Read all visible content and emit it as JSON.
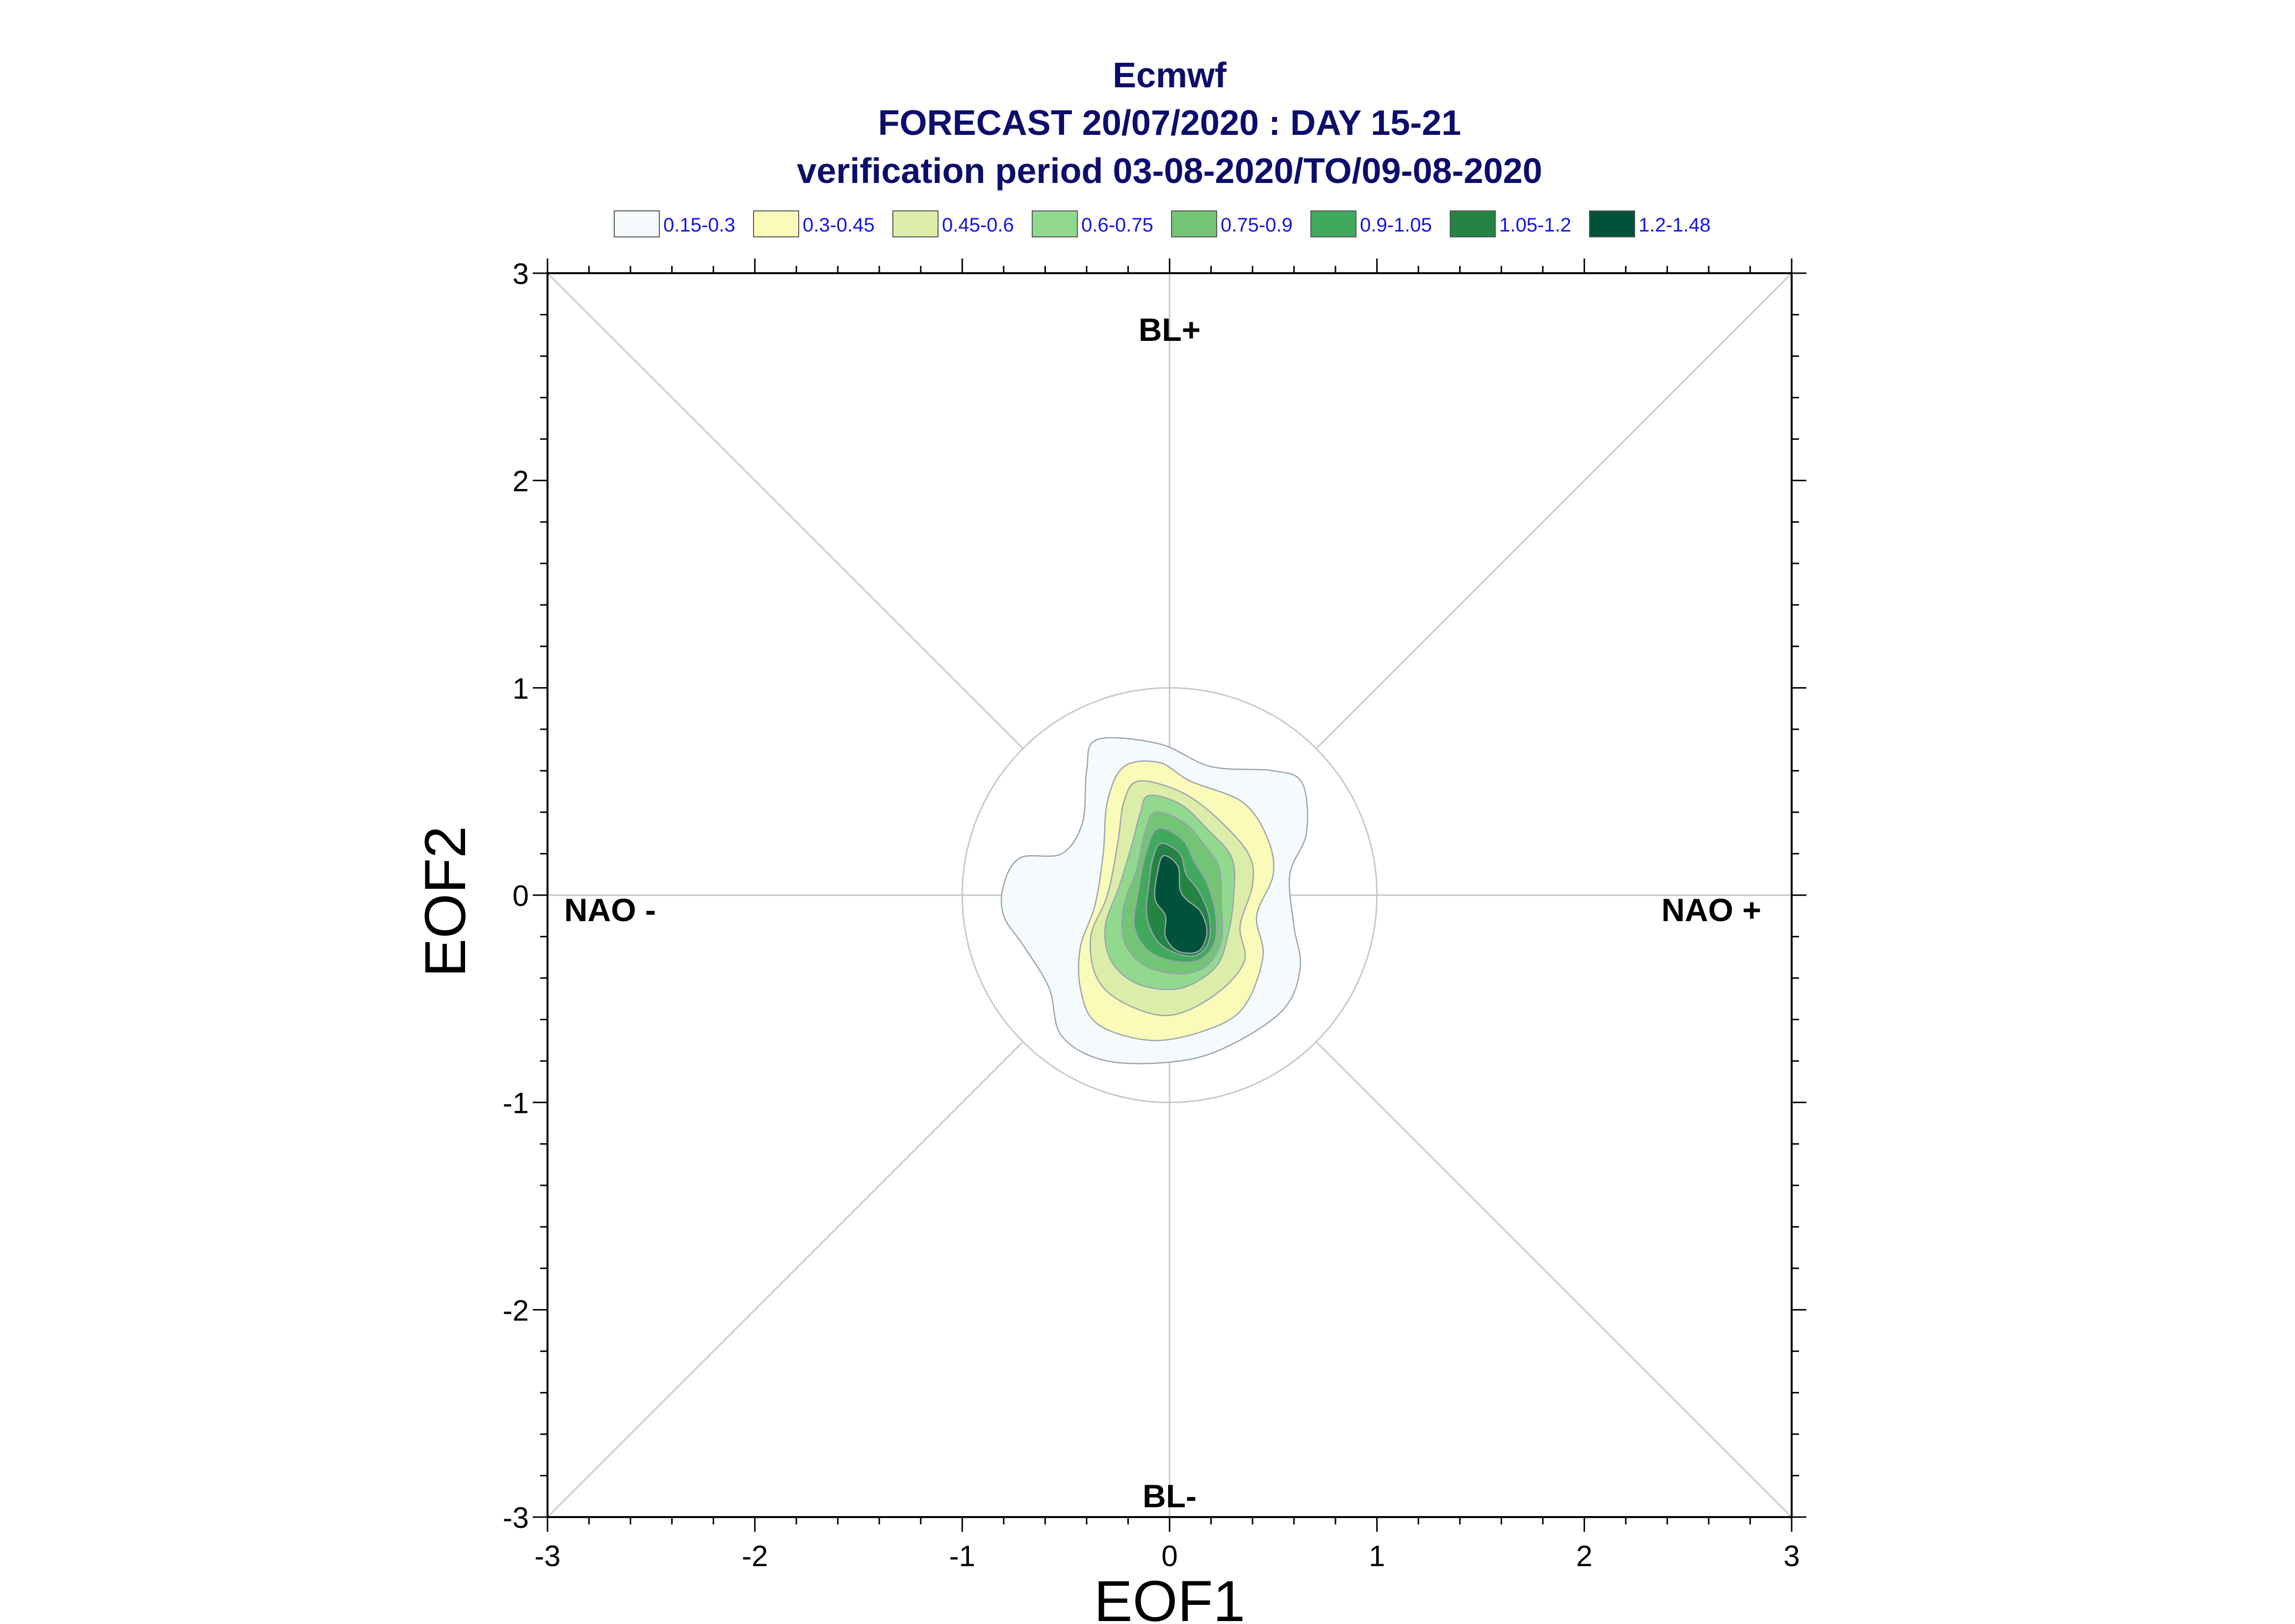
{
  "chart_data": {
    "type": "contour",
    "title": "Ecmwf",
    "subtitle_lines": [
      "FORECAST 20/07/2020 : DAY 15-21",
      "verification period 03-08-2020/TO/09-08-2020"
    ],
    "xlabel": "EOF1",
    "ylabel": "EOF2",
    "xlim": [
      -3,
      3
    ],
    "ylim": [
      -3,
      3
    ],
    "x_ticks": [
      "-3",
      "-2",
      "-1",
      "0",
      "1",
      "2",
      "3"
    ],
    "y_ticks": [
      "-3",
      "-2",
      "-1",
      "0",
      "1",
      "2",
      "3"
    ],
    "x_tick_values": [
      -3,
      -2,
      -1,
      0,
      1,
      2,
      3
    ],
    "y_tick_values": [
      -3,
      -2,
      -1,
      0,
      1,
      2,
      3
    ],
    "reference_circle_radius": 1,
    "regime_labels": {
      "top": "BL+",
      "bottom": "BL-",
      "left": "NAO -",
      "right": "NAO +"
    },
    "legend_position": "top",
    "levels": [
      {
        "label": "0.15-0.3",
        "color": "#f5fafd"
      },
      {
        "label": "0.3-0.45",
        "color": "#fafab9"
      },
      {
        "label": "0.45-0.6",
        "color": "#dcedaa"
      },
      {
        "label": "0.6-0.75",
        "color": "#92d990"
      },
      {
        "label": "0.75-0.9",
        "color": "#74c476"
      },
      {
        "label": "0.9-1.05",
        "color": "#41a95e"
      },
      {
        "label": "1.05-1.2",
        "color": "#238443"
      },
      {
        "label": "1.2-1.48",
        "color": "#00533a"
      }
    ],
    "contours": [
      [
        [
          -0.35,
          0.75
        ],
        [
          -0.05,
          0.73
        ],
        [
          0.2,
          0.62
        ],
        [
          0.5,
          0.6
        ],
        [
          0.64,
          0.54
        ],
        [
          0.66,
          0.3
        ],
        [
          0.58,
          0.1
        ],
        [
          0.6,
          -0.15
        ],
        [
          0.63,
          -0.35
        ],
        [
          0.55,
          -0.55
        ],
        [
          0.3,
          -0.72
        ],
        [
          0.05,
          -0.8
        ],
        [
          -0.3,
          -0.8
        ],
        [
          -0.52,
          -0.68
        ],
        [
          -0.58,
          -0.45
        ],
        [
          -0.7,
          -0.25
        ],
        [
          -0.8,
          -0.1
        ],
        [
          -0.8,
          0.05
        ],
        [
          -0.72,
          0.18
        ],
        [
          -0.52,
          0.2
        ],
        [
          -0.42,
          0.35
        ],
        [
          -0.4,
          0.6
        ]
      ],
      [
        [
          -0.22,
          0.62
        ],
        [
          -0.05,
          0.64
        ],
        [
          0.1,
          0.55
        ],
        [
          0.35,
          0.45
        ],
        [
          0.47,
          0.28
        ],
        [
          0.5,
          0.1
        ],
        [
          0.42,
          -0.1
        ],
        [
          0.45,
          -0.3
        ],
        [
          0.35,
          -0.55
        ],
        [
          0.15,
          -0.66
        ],
        [
          -0.1,
          -0.7
        ],
        [
          -0.35,
          -0.62
        ],
        [
          -0.43,
          -0.45
        ],
        [
          -0.43,
          -0.25
        ],
        [
          -0.36,
          -0.05
        ],
        [
          -0.32,
          0.2
        ],
        [
          -0.3,
          0.45
        ]
      ],
      [
        [
          -0.15,
          0.55
        ],
        [
          0.05,
          0.5
        ],
        [
          0.22,
          0.38
        ],
        [
          0.38,
          0.2
        ],
        [
          0.4,
          0.05
        ],
        [
          0.34,
          -0.15
        ],
        [
          0.36,
          -0.32
        ],
        [
          0.22,
          -0.48
        ],
        [
          0.0,
          -0.58
        ],
        [
          -0.22,
          -0.52
        ],
        [
          -0.35,
          -0.4
        ],
        [
          -0.38,
          -0.2
        ],
        [
          -0.3,
          0.0
        ],
        [
          -0.25,
          0.25
        ],
        [
          -0.22,
          0.45
        ]
      ],
      [
        [
          -0.1,
          0.48
        ],
        [
          0.05,
          0.44
        ],
        [
          0.18,
          0.32
        ],
        [
          0.3,
          0.18
        ],
        [
          0.31,
          0.0
        ],
        [
          0.28,
          -0.2
        ],
        [
          0.22,
          -0.35
        ],
        [
          0.05,
          -0.45
        ],
        [
          -0.15,
          -0.43
        ],
        [
          -0.28,
          -0.32
        ],
        [
          -0.31,
          -0.15
        ],
        [
          -0.24,
          0.05
        ],
        [
          -0.18,
          0.25
        ],
        [
          -0.14,
          0.4
        ]
      ],
      [
        [
          -0.07,
          0.4
        ],
        [
          0.07,
          0.35
        ],
        [
          0.17,
          0.24
        ],
        [
          0.24,
          0.13
        ],
        [
          0.25,
          -0.05
        ],
        [
          0.25,
          -0.22
        ],
        [
          0.18,
          -0.34
        ],
        [
          0.05,
          -0.38
        ],
        [
          -0.12,
          -0.34
        ],
        [
          -0.22,
          -0.22
        ],
        [
          -0.22,
          -0.05
        ],
        [
          -0.16,
          0.12
        ],
        [
          -0.12,
          0.3
        ]
      ],
      [
        [
          -0.06,
          0.32
        ],
        [
          0.06,
          0.27
        ],
        [
          0.12,
          0.16
        ],
        [
          0.18,
          0.06
        ],
        [
          0.22,
          -0.08
        ],
        [
          0.22,
          -0.22
        ],
        [
          0.15,
          -0.31
        ],
        [
          0.03,
          -0.32
        ],
        [
          -0.1,
          -0.27
        ],
        [
          -0.17,
          -0.15
        ],
        [
          -0.15,
          0.02
        ],
        [
          -0.12,
          0.18
        ]
      ],
      [
        [
          -0.04,
          0.25
        ],
        [
          0.05,
          0.2
        ],
        [
          0.08,
          0.1
        ],
        [
          0.14,
          0.02
        ],
        [
          0.19,
          -0.1
        ],
        [
          0.19,
          -0.22
        ],
        [
          0.13,
          -0.29
        ],
        [
          0.03,
          -0.28
        ],
        [
          -0.06,
          -0.22
        ],
        [
          -0.11,
          -0.1
        ],
        [
          -0.1,
          0.05
        ],
        [
          -0.08,
          0.18
        ]
      ],
      [
        [
          -0.03,
          0.19
        ],
        [
          0.04,
          0.14
        ],
        [
          0.05,
          0.03
        ],
        [
          0.08,
          -0.02
        ],
        [
          0.15,
          -0.08
        ],
        [
          0.18,
          -0.18
        ],
        [
          0.14,
          -0.27
        ],
        [
          0.04,
          -0.27
        ],
        [
          -0.02,
          -0.2
        ],
        [
          -0.02,
          -0.1
        ],
        [
          -0.07,
          -0.02
        ],
        [
          -0.06,
          0.1
        ]
      ]
    ]
  }
}
